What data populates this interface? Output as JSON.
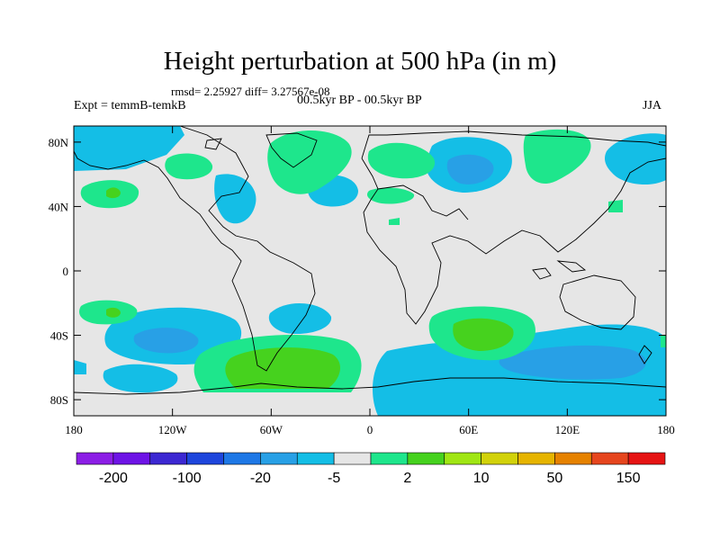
{
  "title": "Height perturbation at 500 hPa (in m)",
  "rmsd_label": "rmsd= 2.25927 diff= 3.27567e-08",
  "experiment_label": "Expt = temmB-temkB",
  "period_label": "00.5kyr BP - 00.5kyr BP",
  "season_label": "JJA",
  "axes": {
    "lat_ticks": [
      {
        "value": 80,
        "label": "80N"
      },
      {
        "value": 40,
        "label": "40N"
      },
      {
        "value": 0,
        "label": "0"
      },
      {
        "value": -40,
        "label": "40S"
      },
      {
        "value": -80,
        "label": "80S"
      }
    ],
    "lon_ticks": [
      {
        "value": -180,
        "label": "180"
      },
      {
        "value": -120,
        "label": "120W"
      },
      {
        "value": -60,
        "label": "60W"
      },
      {
        "value": 0,
        "label": "0"
      },
      {
        "value": 60,
        "label": "60E"
      },
      {
        "value": 120,
        "label": "120E"
      },
      {
        "value": 180,
        "label": "180"
      }
    ],
    "lat_range": [
      -90,
      90
    ],
    "lon_range": [
      -180,
      180
    ]
  },
  "colorbar": {
    "colors": [
      "#8c1ee6",
      "#6e14e6",
      "#3c28d2",
      "#1e46dc",
      "#1e78e6",
      "#28a0e6",
      "#14bee6",
      "#e6e6e6",
      "#1ee68c",
      "#46d21e",
      "#a0e614",
      "#d2d20a",
      "#e6b400",
      "#e68200",
      "#e6461e",
      "#e61414"
    ],
    "labels": [
      {
        "label": "-200",
        "boundary": 1
      },
      {
        "label": "-100",
        "boundary": 3
      },
      {
        "label": "-20",
        "boundary": 5
      },
      {
        "label": "-5",
        "boundary": 7
      },
      {
        "label": "2",
        "boundary": 9
      },
      {
        "label": "10",
        "boundary": 11
      },
      {
        "label": "50",
        "boundary": 13
      },
      {
        "label": "150",
        "boundary": 15
      }
    ]
  },
  "colors": {
    "background": "#e6e6e6",
    "neg_light": "#14bee6",
    "neg_mid": "#28a0e6",
    "pos_light": "#1ee68c",
    "pos_mid": "#46d21e"
  }
}
